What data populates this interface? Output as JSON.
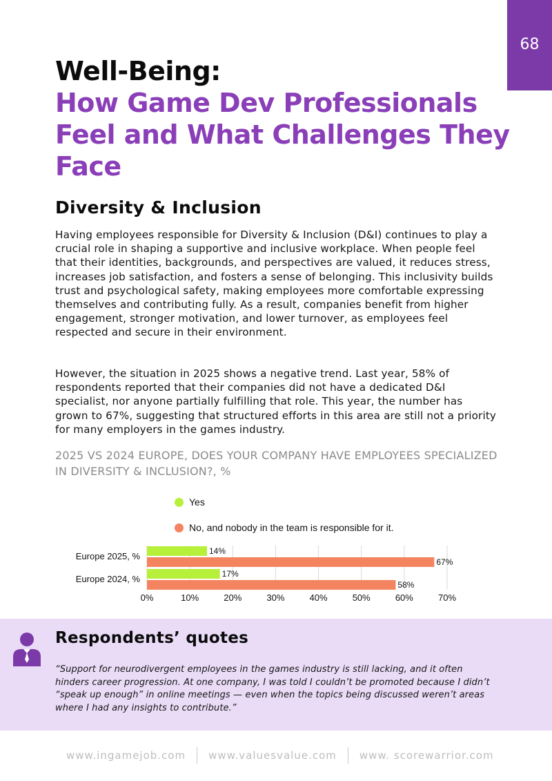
{
  "page_number": "68",
  "title": {
    "line1": "Well-Being:",
    "line2": "How Game Dev Professionals Feel and What Challenges They Face"
  },
  "section": {
    "heading": "Diversity & Inclusion",
    "paragraph1": "Having employees responsible for Diversity & Inclusion (D&I) continues to play a crucial role in shaping a supportive and inclusive workplace. When people feel that their identities, backgrounds, and perspectives are valued, it reduces stress, increases job satisfaction, and fosters a sense of belonging. This inclusivity builds trust and psychological safety, making employees more comfortable expressing themselves and contributing fully. As a result, companies benefit from higher engagement, stronger motivation, and lower turnover, as employees feel respected and secure in their environment.",
    "paragraph2": "However, the situation in 2025 shows a negative trend. Last year, 58% of respondents reported that their companies did not have a dedicated D&I specialist, nor anyone partially fulfilling that role. This year, the number has grown to 67%, suggesting that structured efforts in this area are still not a priority for many employers in the games industry."
  },
  "chart_data": {
    "type": "bar",
    "orientation": "horizontal",
    "title": "2025 VS 2024 EUROPE, DOES YOUR COMPANY HAVE EMPLOYEES SPECIALIZED IN DIVERSITY & INCLUSION?, %",
    "categories": [
      "Europe 2025, %",
      "Europe 2024, %"
    ],
    "series": [
      {
        "name": "Yes",
        "values": [
          14,
          17
        ],
        "color": "#b6f03a"
      },
      {
        "name": "No, and nobody in the team is responsible for it.",
        "values": [
          67,
          58
        ],
        "color": "#f4845f"
      }
    ],
    "xlim": [
      0,
      70
    ],
    "xticks": [
      "0%",
      "10%",
      "20%",
      "30%",
      "40%",
      "50%",
      "60%",
      "70%"
    ],
    "value_suffix": "%",
    "grid": true,
    "legend_position": "top"
  },
  "quotes": {
    "heading": "Respondents’ quotes",
    "icon": "person-tie-icon",
    "text": "“Support for neurodivergent employees in the games industry is still lacking, and it often hinders career progression. At one company, I was told I couldn’t be promoted because I didn’t “speak up enough” in online meetings — even when the topics being discussed weren’t areas where I had any insights to contribute.”"
  },
  "footer": {
    "links": [
      "www.ingamejob.com",
      "www.valuesvalue.com",
      "www. scorewarrior.com"
    ]
  },
  "colors": {
    "accent": "#8a3fb8",
    "tab": "#7c3aa8",
    "quote_band": "#eadcf7"
  }
}
